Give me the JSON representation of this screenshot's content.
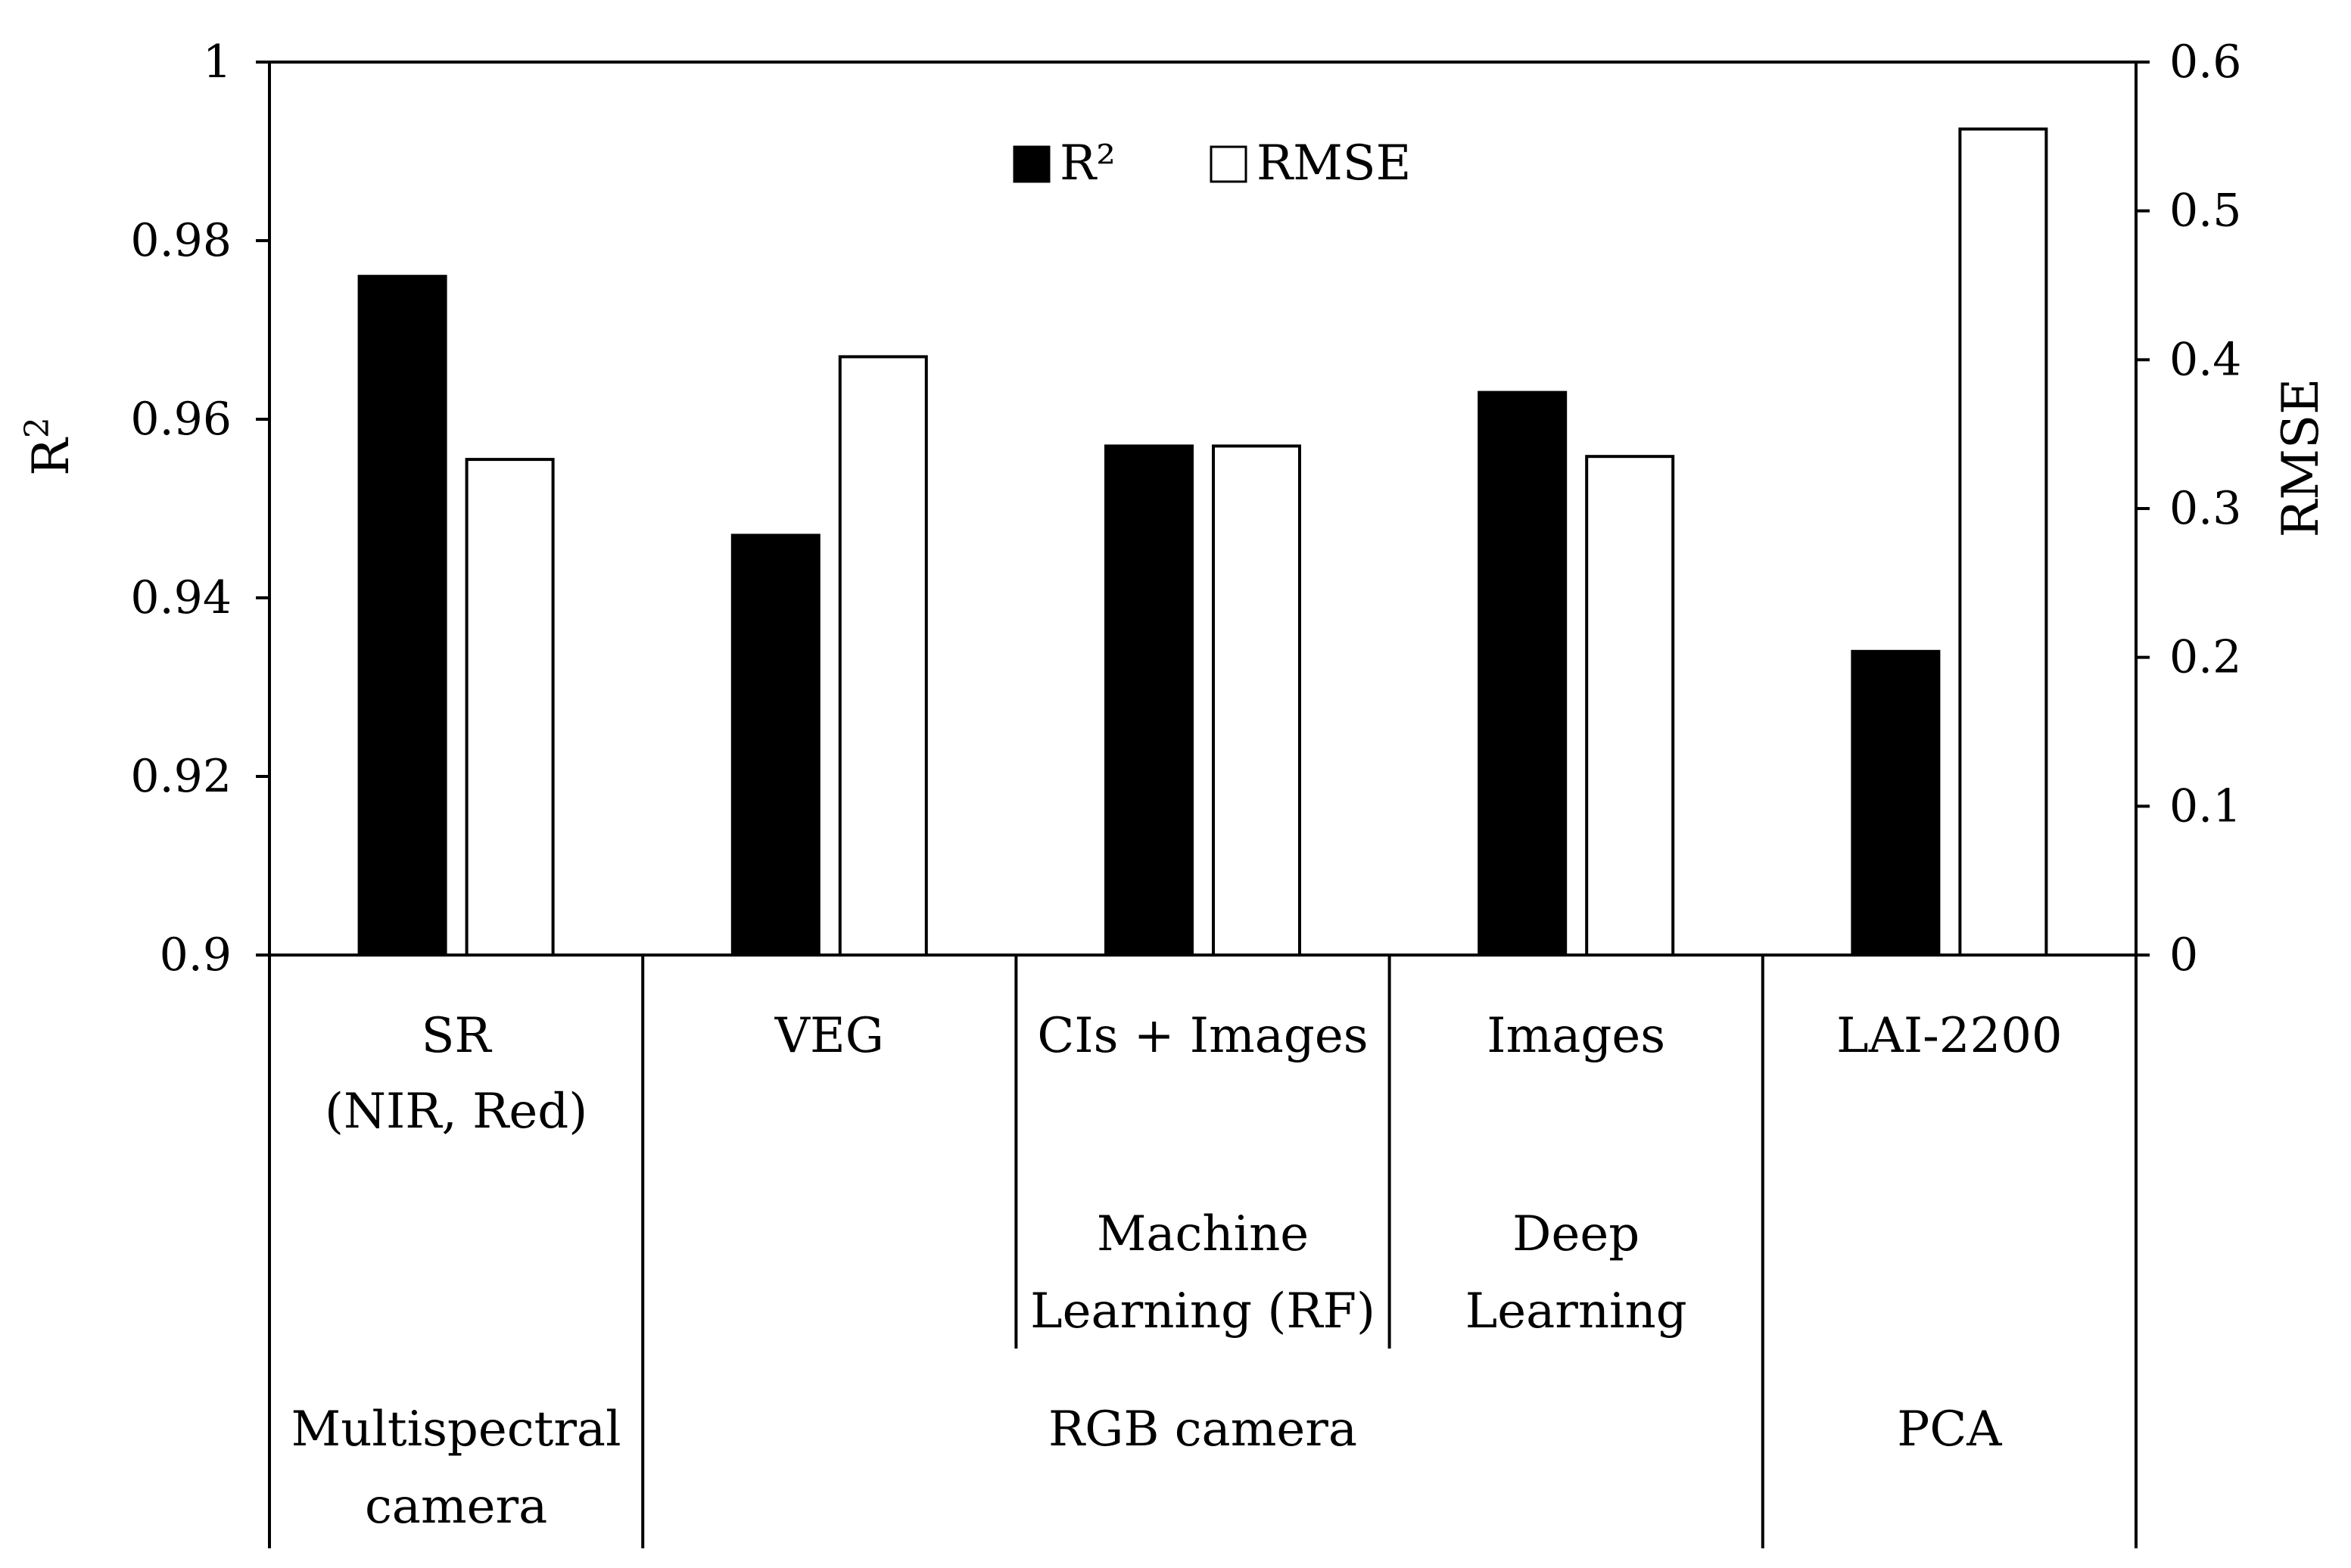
{
  "chart_data": {
    "type": "bar",
    "title": "",
    "categories": [
      "SR\n(NIR, Red)",
      "VEG",
      "CIs + Images",
      "Images",
      "LAI-2200"
    ],
    "series": [
      {
        "name": "R²",
        "axis": "left",
        "color": "#000000",
        "values": [
          0.976,
          0.947,
          0.957,
          0.963,
          0.934
        ]
      },
      {
        "name": "RMSE",
        "axis": "right",
        "color": "#ffffff",
        "values": [
          0.333,
          0.402,
          0.342,
          0.335,
          0.555
        ]
      }
    ],
    "ylabel": "R2",
    "ylabel_main": "R",
    "ylabel_sup": "2",
    "y2label": "RMSE",
    "ylim": [
      0.9,
      1.0
    ],
    "y2lim": [
      0,
      0.6
    ],
    "yticks": [
      "0.9",
      "0.92",
      "0.94",
      "0.96",
      "0.98",
      "1"
    ],
    "y2ticks": [
      "0",
      "0.1",
      "0.2",
      "0.3",
      "0.4",
      "0.5",
      "0.6"
    ],
    "legend": {
      "position": "top-center",
      "items": [
        "R²",
        "RMSE"
      ]
    },
    "method_groups": [
      {
        "label": "Machine\nLearning (RF)",
        "span": [
          2,
          2
        ]
      },
      {
        "label": "Deep\nLearning",
        "span": [
          3,
          3
        ]
      }
    ],
    "sensor_groups": [
      {
        "label": "Multispectral\ncamera",
        "span": [
          0,
          0
        ]
      },
      {
        "label": "RGB camera",
        "span": [
          1,
          3
        ]
      },
      {
        "label": "PCA",
        "span": [
          4,
          4
        ]
      }
    ]
  }
}
